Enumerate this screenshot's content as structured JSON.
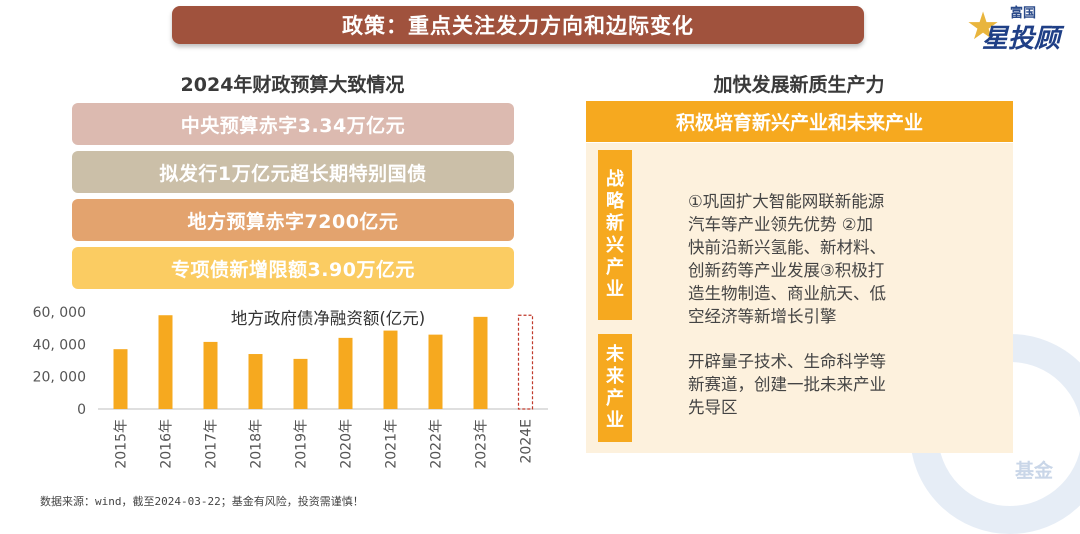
{
  "header": {
    "title": "政策：重点关注发力方向和边际变化"
  },
  "logo": {
    "top": "富国",
    "main": "星投顾"
  },
  "left": {
    "heading": "2024年财政预算大致情况",
    "items": [
      {
        "label": "中央预算赤字3.34万亿元",
        "color": "#dcbab0"
      },
      {
        "label": "拟发行1万亿元超长期特别国债",
        "color": "#cbbfa8"
      },
      {
        "label": "地方预算赤字7200亿元",
        "color": "#e3a36e"
      },
      {
        "label": "专项债新增限额3.90万亿元",
        "color": "#fbcc62"
      }
    ]
  },
  "chart_data": {
    "type": "bar",
    "title": "地方政府债净融资额(亿元)",
    "categories": [
      "2015年",
      "2016年",
      "2017年",
      "2018年",
      "2019年",
      "2020年",
      "2021年",
      "2022年",
      "2023年",
      "2024E"
    ],
    "values": [
      37000,
      58000,
      41500,
      34000,
      31000,
      44000,
      48500,
      46000,
      57000,
      58000
    ],
    "estimated": [
      false,
      false,
      false,
      false,
      false,
      false,
      false,
      false,
      false,
      true
    ],
    "yticks": [
      "0",
      "20, 000",
      "40, 000",
      "60, 000"
    ],
    "ylim": [
      0,
      60000
    ],
    "bar_color": "#f6a91f",
    "estimate_color": "#c0392b"
  },
  "footnote": "数据来源：wind，截至2024-03-22；基金有风险，投资需谨慎！",
  "right": {
    "heading": "加快发展新质生产力",
    "banner": "积极培育新兴产业和未来产业",
    "sections": [
      {
        "tag": [
          "战",
          "略",
          "新",
          "兴",
          "产",
          "业"
        ],
        "lines": [
          "①巩固扩大智能网联新能源",
          "汽车等产业领先优势 ②加",
          "快前沿新兴氢能、新材料、",
          "创新药等产业发展③积极打",
          "造生物制造、商业航天、低",
          "空经济等新增长引擎"
        ]
      },
      {
        "tag": [
          "未",
          "来",
          "产",
          "业"
        ],
        "lines": [
          "开辟量子技术、生命科学等",
          "新赛道，创建一批未来产业",
          "先导区"
        ]
      }
    ]
  },
  "watermark": "基金"
}
